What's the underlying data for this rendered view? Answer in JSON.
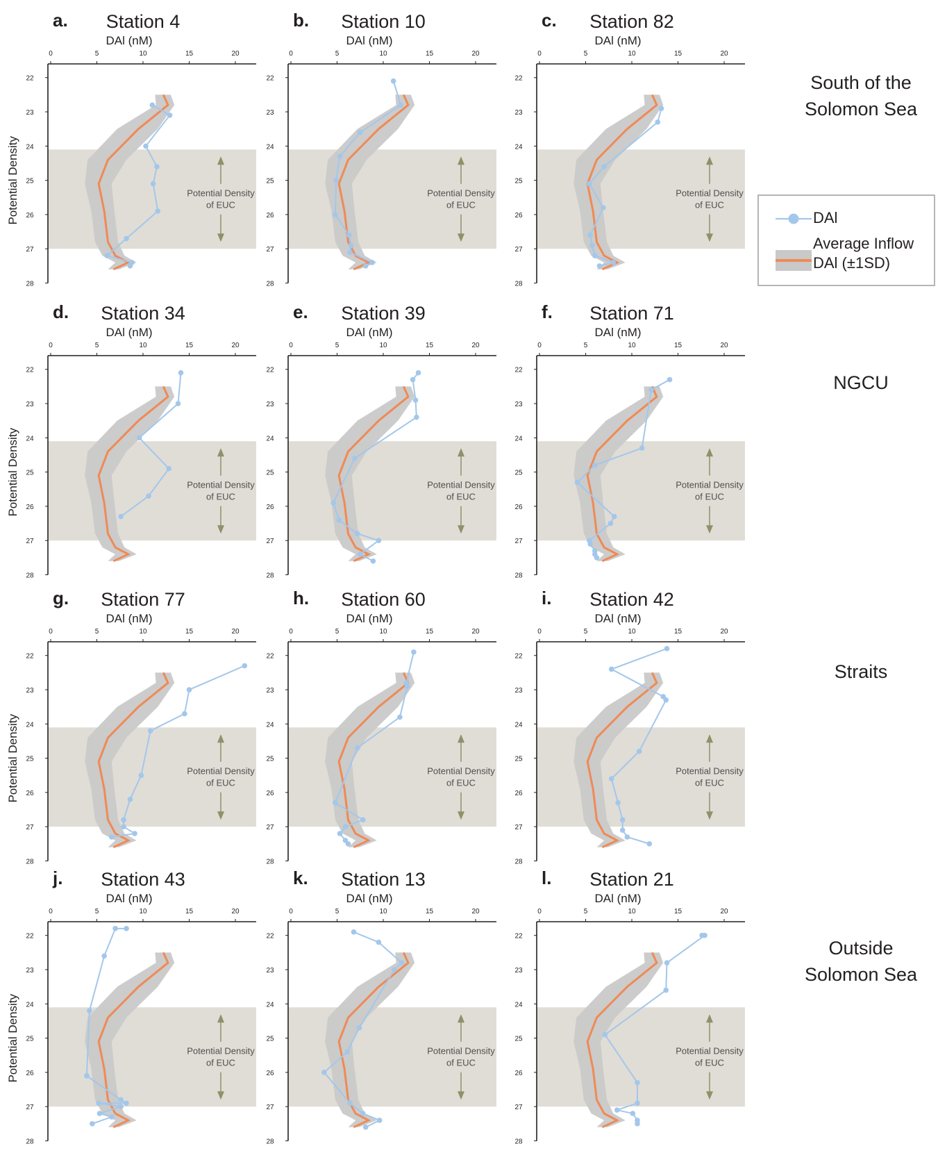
{
  "colors": {
    "dai": "#a3c7ea",
    "inflow_line": "#ef8a55",
    "inflow_band": "#c9c9c9",
    "euc_band": "#e0ddd6",
    "arrow": "#8f9169",
    "axis": "#231f20"
  },
  "legend": {
    "dai_label": "DAl",
    "inflow_label_line1": "Average Inflow",
    "inflow_label_line2": "DAl (±1SD)"
  },
  "row_labels": [
    [
      "South of the",
      "Solomon Sea"
    ],
    [
      "NGCU"
    ],
    [
      "Straits"
    ],
    [
      "Outside",
      "Solomon Sea"
    ]
  ],
  "chart_data": {
    "common": {
      "type": "line",
      "xlabel": "DAl (nM)",
      "ylabel": "Potential Density",
      "xlim": [
        0,
        22
      ],
      "ylim": [
        28,
        21.6
      ],
      "x_ticks": [
        0,
        5,
        10,
        15,
        20
      ],
      "y_ticks": [
        22,
        23,
        24,
        25,
        26,
        27,
        28
      ],
      "euc_band": [
        24.1,
        27.0
      ],
      "euc_label": [
        "Potential Density",
        "of EUC"
      ],
      "inflow": {
        "name": "Average Inflow DAl (±1SD)",
        "density": [
          22.5,
          22.8,
          23.5,
          24.4,
          25.1,
          25.9,
          26.8,
          27.2,
          27.4,
          27.6
        ],
        "mean": [
          12.2,
          12.7,
          9.5,
          6.2,
          5.2,
          5.8,
          6.2,
          7.0,
          8.4,
          6.8
        ],
        "lower": [
          11.3,
          11.4,
          7.2,
          4.0,
          3.7,
          4.4,
          4.8,
          5.6,
          7.0,
          6.2
        ],
        "upper": [
          13.0,
          13.4,
          11.6,
          8.2,
          6.6,
          6.9,
          7.3,
          8.0,
          9.3,
          7.4
        ]
      }
    },
    "panels": [
      {
        "letter": "a.",
        "title": "Station 4",
        "dai": {
          "x": [
            11.0,
            12.9,
            10.3,
            11.5,
            11.1,
            11.6,
            8.2,
            6.1,
            8.8,
            8.6
          ],
          "y": [
            22.8,
            23.1,
            24.0,
            24.6,
            25.1,
            25.9,
            26.7,
            27.2,
            27.4,
            27.5
          ]
        }
      },
      {
        "letter": "b.",
        "title": "Station 10",
        "dai": {
          "x": [
            11.1,
            11.9,
            7.5,
            5.3,
            4.9,
            4.8,
            6.3,
            6.5,
            6.4,
            8.8,
            8.1
          ],
          "y": [
            22.1,
            22.8,
            23.6,
            24.3,
            25.0,
            26.0,
            26.6,
            26.9,
            27.1,
            27.4,
            27.5
          ]
        }
      },
      {
        "letter": "c.",
        "title": "Station 82",
        "dai": {
          "x": [
            13.2,
            12.8,
            7.0,
            5.4,
            6.9,
            5.5,
            5.7,
            6.0,
            8.0,
            6.5
          ],
          "y": [
            22.9,
            23.3,
            24.6,
            25.1,
            25.8,
            26.6,
            26.9,
            27.2,
            27.4,
            27.5
          ]
        }
      },
      {
        "letter": "d.",
        "title": "Station 34",
        "dai": {
          "x": [
            14.1,
            13.8,
            9.6,
            12.8,
            10.6,
            7.6
          ],
          "y": [
            22.1,
            23.0,
            24.0,
            24.9,
            25.7,
            26.3
          ]
        }
      },
      {
        "letter": "e.",
        "title": "Station 39",
        "dai": {
          "x": [
            13.8,
            13.2,
            13.5,
            13.6,
            6.9,
            4.6,
            5.2,
            7.2,
            9.5,
            7.5,
            8.9
          ],
          "y": [
            22.1,
            22.3,
            22.9,
            23.4,
            24.6,
            25.9,
            26.4,
            26.8,
            27.0,
            27.4,
            27.6
          ]
        }
      },
      {
        "letter": "f.",
        "title": "Station 71",
        "dai": {
          "x": [
            14.1,
            12.1,
            11.1,
            6.0,
            4.1,
            8.1,
            7.7,
            5.4,
            5.5,
            6.0,
            6.0,
            6.2
          ],
          "y": [
            22.3,
            22.6,
            24.3,
            24.8,
            25.3,
            26.3,
            26.5,
            27.0,
            27.1,
            27.3,
            27.4,
            27.5
          ]
        }
      },
      {
        "letter": "g.",
        "title": "Station 77",
        "dai": {
          "x": [
            21.0,
            15.0,
            14.5,
            10.8,
            9.8,
            8.6,
            7.9,
            7.9,
            9.1,
            6.6
          ],
          "y": [
            22.3,
            23.0,
            23.7,
            24.2,
            25.5,
            26.2,
            26.8,
            27.0,
            27.2,
            27.3
          ]
        }
      },
      {
        "letter": "h.",
        "title": "Station 60",
        "dai": {
          "x": [
            13.3,
            12.5,
            12.6,
            11.8,
            7.2,
            4.8,
            7.8,
            5.9,
            5.3,
            5.9,
            6.2
          ],
          "y": [
            21.9,
            22.8,
            22.9,
            23.8,
            24.7,
            26.3,
            26.8,
            27.0,
            27.2,
            27.4,
            27.5
          ]
        }
      },
      {
        "letter": "i.",
        "title": "Station 42",
        "dai": {
          "x": [
            13.8,
            7.8,
            13.4,
            13.7,
            10.8,
            7.8,
            8.5,
            9.0,
            9.0,
            9.5,
            11.9
          ],
          "y": [
            21.8,
            22.4,
            23.2,
            23.3,
            24.8,
            25.6,
            26.3,
            26.8,
            27.1,
            27.3,
            27.5
          ]
        }
      },
      {
        "letter": "j.",
        "title": "Station 43",
        "dai": {
          "x": [
            8.2,
            7.0,
            5.8,
            4.2,
            3.9,
            7.6,
            8.2,
            5.2,
            7.6,
            5.3,
            6.6,
            4.5
          ],
          "y": [
            21.8,
            21.8,
            22.6,
            24.2,
            26.1,
            26.8,
            26.9,
            26.9,
            27.0,
            27.2,
            27.3,
            27.5
          ]
        }
      },
      {
        "letter": "k.",
        "title": "Station 13",
        "dai": {
          "x": [
            6.8,
            9.5,
            12.0,
            11.2,
            7.4,
            6.1,
            3.6,
            6.4,
            7.8,
            9.6,
            8.1
          ],
          "y": [
            21.9,
            22.2,
            22.8,
            23.0,
            24.7,
            25.4,
            26.0,
            26.9,
            27.2,
            27.4,
            27.6
          ]
        }
      },
      {
        "letter": "l.",
        "title": "Station 21",
        "dai": {
          "x": [
            17.6,
            17.9,
            13.8,
            13.7,
            7.1,
            10.6,
            10.6,
            8.4,
            10.1,
            10.6,
            10.6
          ],
          "y": [
            22.0,
            22.0,
            22.8,
            23.6,
            24.9,
            26.3,
            26.9,
            27.1,
            27.2,
            27.4,
            27.5
          ]
        }
      }
    ]
  }
}
